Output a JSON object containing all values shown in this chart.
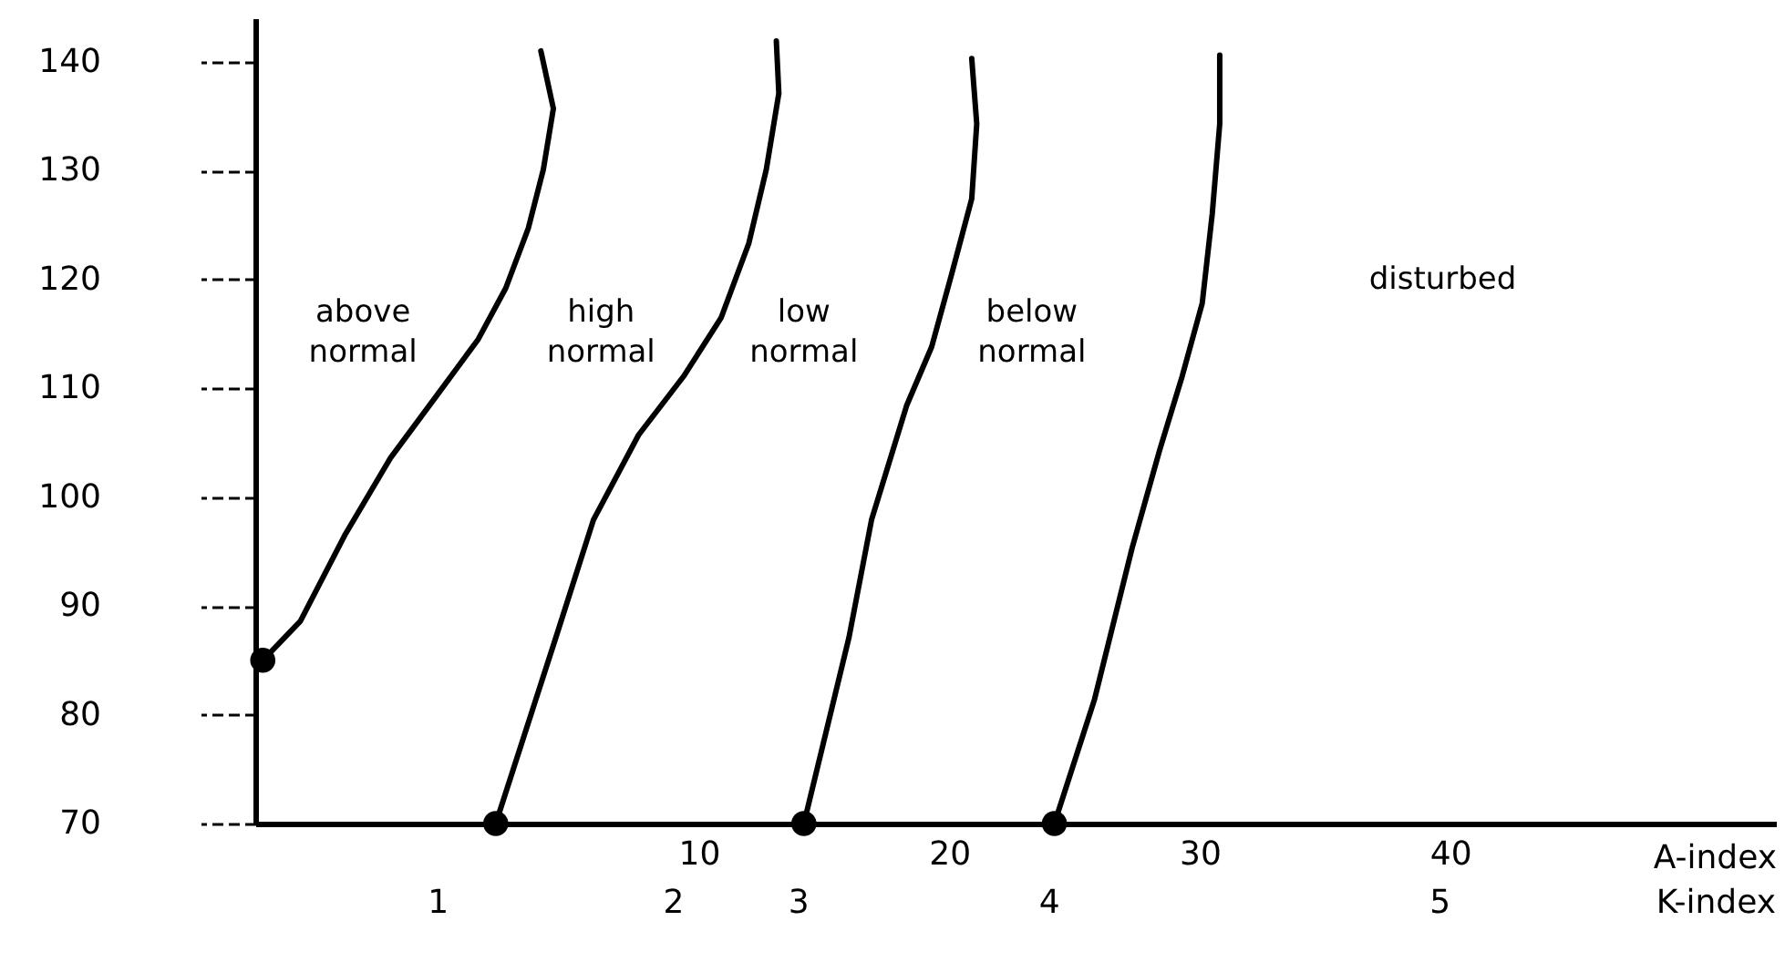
{
  "chart_data": {
    "type": "line",
    "xlabel": "A-index",
    "xlim": [
      -7.7,
      53
    ],
    "xticks": [
      10,
      20,
      30,
      40
    ],
    "ylim": [
      70,
      144
    ],
    "yticks": [
      70,
      80,
      90,
      100,
      110,
      120,
      130,
      140
    ],
    "marker": "none",
    "line_style": "solid",
    "series": [
      {
        "color": "#000000",
        "x": [
          -7.4,
          -5.9,
          -4.1,
          -2.3,
          -0.4,
          1.2,
          2.3,
          3.2,
          3.8,
          4.2,
          3.7
        ],
        "values": [
          85,
          88.6,
          96.6,
          103.6,
          109.5,
          114.5,
          119.2,
          124.7,
          130.1,
          135.7,
          141.0
        ]
      },
      {
        "color": "#000000",
        "x": [
          1.9,
          4.3,
          5.8,
          7.6,
          9.4,
          10.9,
          12.0,
          12.7,
          13.2,
          13.1
        ],
        "values": [
          70,
          87.1,
          97.9,
          105.7,
          111.1,
          116.5,
          123.3,
          130.1,
          137.1,
          141.9
        ]
      },
      {
        "color": "#000000",
        "x": [
          14.2,
          16.0,
          16.9,
          18.3,
          19.3,
          20.1,
          20.9,
          21.1,
          20.9
        ],
        "values": [
          70,
          87.1,
          97.9,
          108.4,
          113.8,
          120.5,
          127.4,
          134.3,
          140.3
        ]
      },
      {
        "color": "#000000",
        "x": [
          24.2,
          25.8,
          27.3,
          28.4,
          29.3,
          30.1,
          30.5,
          30.8,
          30.8
        ],
        "values": [
          70,
          81.4,
          95.3,
          104.3,
          111.1,
          117.8,
          126.0,
          134.3,
          140.6
        ]
      },
      {
        "type": "scatter",
        "marker": "circle",
        "color": "#000000",
        "x": [
          -7.4,
          1.9,
          14.2,
          24.2
        ],
        "values": [
          85,
          70,
          70,
          70
        ]
      }
    ],
    "annotations": [
      "above normal",
      "high normal",
      "low normal",
      "below normal",
      "disturbed",
      "1",
      "2",
      "3",
      "4",
      "5",
      "K-index"
    ]
  }
}
